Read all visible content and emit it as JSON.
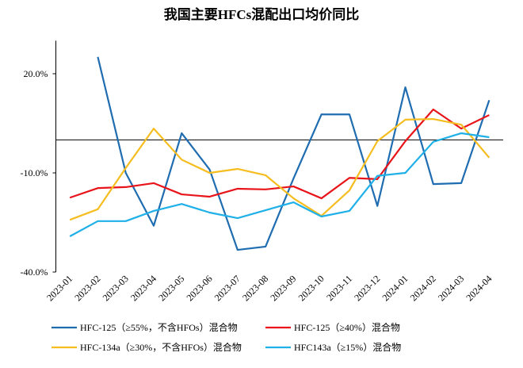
{
  "chart_data": {
    "type": "line",
    "title": "我国主要HFCs混配出口均价同比",
    "categories": [
      "2023-01",
      "2023-02",
      "2023-03",
      "2023-04",
      "2023-05",
      "2023-06",
      "2023-07",
      "2023-08",
      "2023-09",
      "2023-10",
      "2023-11",
      "2023-12",
      "2024-01",
      "2024-02",
      "2024-03",
      "2024-04"
    ],
    "series": [
      {
        "name": "HFC-125（≥55%，不含HFOs）混合物",
        "color": "#1f6db0",
        "values": [
          null,
          25.1,
          -10,
          -26,
          2,
          -9,
          -33.3,
          -32.3,
          -11.7,
          7.7,
          7.7,
          -20,
          15.9,
          -13.4,
          -13.1,
          12
        ]
      },
      {
        "name": "HFC-125（≥40%）混合物",
        "color": "#e8141a",
        "values": [
          -17.5,
          -14.6,
          -14.3,
          -13.1,
          -16.5,
          -17.2,
          -14.8,
          -15,
          -14.1,
          -17.7,
          -11.5,
          -11.9,
          -0.4,
          9.2,
          3.4,
          7.5
        ]
      },
      {
        "name": "HFC-134a（≥30%，不含HFOs）混合物",
        "color": "#f5bd1f",
        "values": [
          -24.2,
          -21,
          -8.5,
          3.4,
          -6,
          -10,
          -8.8,
          -10.7,
          -17.7,
          -23,
          -15.3,
          -0.4,
          6.1,
          6.3,
          4.6,
          -5.4
        ]
      },
      {
        "name": "HFC143a（≥15%）混合物",
        "color": "#1fb0e8",
        "values": [
          -29.2,
          -24.6,
          -24.6,
          -21.5,
          -19.4,
          -22,
          -23.7,
          -21.3,
          -18.9,
          -23.2,
          -21.5,
          -10.9,
          -10,
          -0.6,
          2,
          0.8
        ]
      }
    ],
    "ylim": [
      -40,
      30
    ],
    "yticks": [
      {
        "value": -40,
        "label": "-40.0%"
      },
      {
        "value": -10,
        "label": "-10.0%"
      },
      {
        "value": 20,
        "label": "20.0%"
      }
    ]
  }
}
